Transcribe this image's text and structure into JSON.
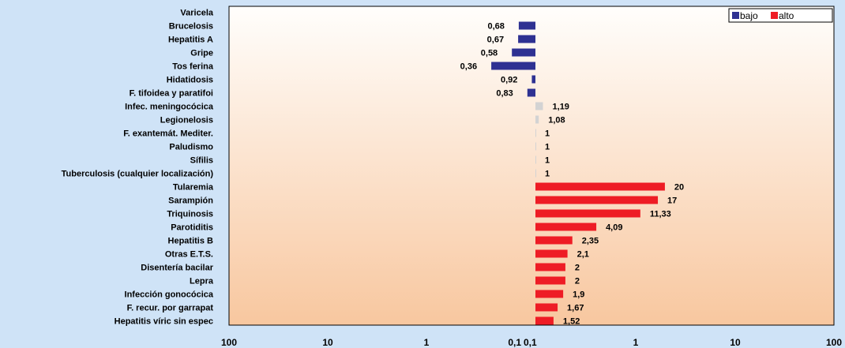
{
  "chart_data": {
    "type": "bar",
    "orientation": "horizontal",
    "x_scale": "log",
    "x_axis_left": {
      "ticks": [
        "100",
        "10",
        "1",
        "0,1"
      ],
      "range": [
        100,
        0.1
      ]
    },
    "x_axis_right": {
      "ticks": [
        "0,1",
        "1",
        "10",
        "100"
      ],
      "range": [
        0.1,
        100
      ]
    },
    "legend": {
      "position": "top-right",
      "entries": [
        {
          "name": "bajo",
          "color": "#2e3192"
        },
        {
          "name": "alto",
          "color": "#ee1c25"
        }
      ]
    },
    "colors": {
      "bajo": "#2e3192",
      "alto": "#ee1c25",
      "neutro": "#d3d3d3"
    },
    "categories": [
      "Varicela",
      "Brucelosis",
      "Hepatitis A",
      "Gripe",
      "Tos ferina",
      "Hidatidosis",
      "F. tifoidea y paratifoi",
      "Infec. meningocócica",
      "Legionelosis",
      "F. exantemát. Mediter.",
      "Paludismo",
      "Sífilis",
      "Tuberculosis (cualquier localización)",
      "Tularemia",
      "Sarampión",
      "Triquinosis",
      "Parotiditis",
      "Hepatitis B",
      "Otras E.T.S.",
      "Disentería bacilar",
      "Lepra",
      "Infección gonocócica",
      "F. recur. por garrapat",
      "Hepatitis víric sin espec"
    ],
    "values": [
      null,
      0.68,
      0.67,
      0.58,
      0.36,
      0.92,
      0.83,
      1.19,
      1.08,
      1,
      1,
      1,
      1,
      20,
      17,
      11.33,
      4.09,
      2.35,
      2.1,
      2,
      2,
      1.9,
      1.67,
      1.52
    ],
    "value_labels": [
      "",
      "0,68",
      "0,67",
      "0,58",
      "0,36",
      "0,92",
      "0,83",
      "1,19",
      "1,08",
      "1",
      "1",
      "1",
      "1",
      "20",
      "17",
      "11,33",
      "4,09",
      "2,35",
      "2,1",
      "2",
      "2",
      "1,9",
      "1,67",
      "1,52"
    ],
    "groups": [
      "bajo",
      "bajo",
      "bajo",
      "bajo",
      "bajo",
      "bajo",
      "bajo",
      "neutro",
      "neutro",
      "neutro",
      "neutro",
      "neutro",
      "neutro",
      "alto",
      "alto",
      "alto",
      "alto",
      "alto",
      "alto",
      "alto",
      "alto",
      "alto",
      "alto",
      "alto"
    ]
  }
}
